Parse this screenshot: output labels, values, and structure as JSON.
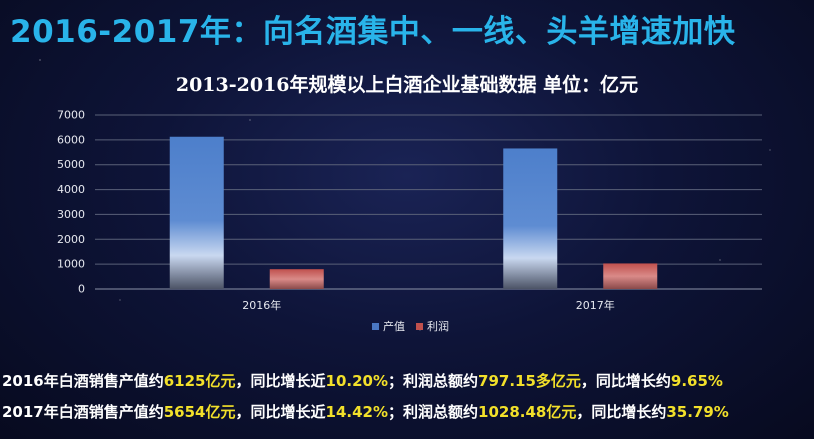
{
  "title": "2016-2017年：向名酒集中、一线、头羊增速加快",
  "chart_data": {
    "type": "bar",
    "title": "2013-2016年规模以上白酒企业基础数据 单位：亿元",
    "categories": [
      "2016年",
      "2017年"
    ],
    "series": [
      {
        "name": "产值",
        "values": [
          6125,
          5654
        ],
        "color": "#4a77c2"
      },
      {
        "name": "利润",
        "values": [
          797.15,
          1028.48
        ],
        "color": "#c0504d"
      }
    ],
    "ylim": [
      0,
      7000
    ],
    "yticks": [
      0,
      1000,
      2000,
      3000,
      4000,
      5000,
      6000,
      7000
    ],
    "grid": true,
    "legend_position": "bottom"
  },
  "summary": {
    "line_2016": {
      "p1": "2016年白酒销售产值约",
      "v1": "6125亿元",
      "p2": "，同比增长近",
      "v2": "10.20%",
      "p3": "；利润总额约",
      "v3": "797.15多亿元",
      "p4": "，同比增长约",
      "v4": "9.65%"
    },
    "line_2017": {
      "p1": "2017年白酒销售产值约",
      "v1": "5654亿元",
      "p2": "，同比增长近",
      "v2": "14.42%",
      "p3": "；利润总额约",
      "v3": "1028.48亿元",
      "p4": "，同比增长约",
      "v4": "35.79%"
    }
  }
}
